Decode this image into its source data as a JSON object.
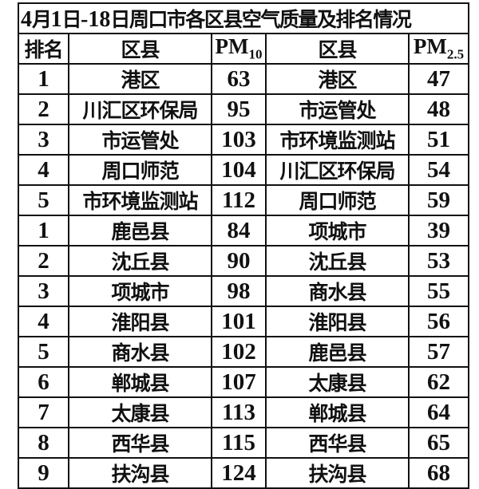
{
  "title": "4月1日-18日周口市各区县空气质量及排名情况",
  "headers": {
    "rank": "排名",
    "district1": "区县",
    "pm10_main": "PM",
    "pm10_sub": "10",
    "district2": "区县",
    "pm25_main": "PM",
    "pm25_sub": "2.5"
  },
  "rows": [
    {
      "rank": "1",
      "d1": "港区",
      "pm10": "63",
      "d2": "港区",
      "pm25": "47"
    },
    {
      "rank": "2",
      "d1": "川汇区环保局",
      "pm10": "95",
      "d2": "市运管处",
      "pm25": "48"
    },
    {
      "rank": "3",
      "d1": "市运管处",
      "pm10": "103",
      "d2": "市环境监测站",
      "pm25": "51"
    },
    {
      "rank": "4",
      "d1": "周口师范",
      "pm10": "104",
      "d2": "川汇区环保局",
      "pm25": "54"
    },
    {
      "rank": "5",
      "d1": "市环境监测站",
      "pm10": "112",
      "d2": "周口师范",
      "pm25": "59"
    },
    {
      "rank": "1",
      "d1": "鹿邑县",
      "pm10": "84",
      "d2": "项城市",
      "pm25": "39"
    },
    {
      "rank": "2",
      "d1": "沈丘县",
      "pm10": "90",
      "d2": "沈丘县",
      "pm25": "53"
    },
    {
      "rank": "3",
      "d1": "项城市",
      "pm10": "98",
      "d2": "商水县",
      "pm25": "55"
    },
    {
      "rank": "4",
      "d1": "淮阳县",
      "pm10": "101",
      "d2": "淮阳县",
      "pm25": "56"
    },
    {
      "rank": "5",
      "d1": "商水县",
      "pm10": "102",
      "d2": "鹿邑县",
      "pm25": "57"
    },
    {
      "rank": "6",
      "d1": "郸城县",
      "pm10": "107",
      "d2": "太康县",
      "pm25": "62"
    },
    {
      "rank": "7",
      "d1": "太康县",
      "pm10": "113",
      "d2": "郸城县",
      "pm25": "64"
    },
    {
      "rank": "8",
      "d1": "西华县",
      "pm10": "115",
      "d2": "西华县",
      "pm25": "65"
    },
    {
      "rank": "9",
      "d1": "扶沟县",
      "pm10": "124",
      "d2": "扶沟县",
      "pm25": "68"
    }
  ]
}
